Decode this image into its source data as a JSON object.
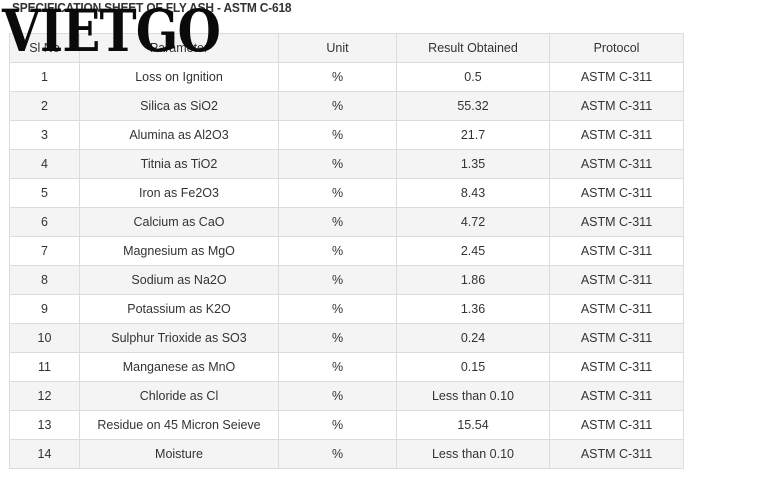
{
  "title": "SPECIFICATION SHEET OF FLY ASH - ASTM C-618",
  "logo_text": "VIETGO",
  "table": {
    "headers": [
      "Sl No",
      "Parameter",
      "Unit",
      "Result Obtained",
      "Protocol"
    ],
    "rows": [
      [
        "1",
        "Loss on Ignition",
        "%",
        "0.5",
        "ASTM C-311"
      ],
      [
        "2",
        "Silica as SiO2",
        "%",
        "55.32",
        "ASTM C-311"
      ],
      [
        "3",
        "Alumina as Al2O3",
        "%",
        "21.7",
        "ASTM C-311"
      ],
      [
        "4",
        "Titnia as TiO2",
        "%",
        "1.35",
        "ASTM C-311"
      ],
      [
        "5",
        "Iron as Fe2O3",
        "%",
        "8.43",
        "ASTM C-311"
      ],
      [
        "6",
        "Calcium as CaO",
        "%",
        "4.72",
        "ASTM C-311"
      ],
      [
        "7",
        "Magnesium as MgO",
        "%",
        "2.45",
        "ASTM C-311"
      ],
      [
        "8",
        "Sodium as Na2O",
        "%",
        "1.86",
        "ASTM C-311"
      ],
      [
        "9",
        "Potassium as K2O",
        "%",
        "1.36",
        "ASTM C-311"
      ],
      [
        "10",
        "Sulphur Trioxide as SO3",
        "%",
        "0.24",
        "ASTM C-311"
      ],
      [
        "11",
        "Manganese as MnO",
        "%",
        "0.15",
        "ASTM C-311"
      ],
      [
        "12",
        "Chloride as Cl",
        "%",
        "Less than 0.10",
        "ASTM C-311"
      ],
      [
        "13",
        "Residue on 45 Micron Seieve",
        "%",
        "15.54",
        "ASTM C-311"
      ],
      [
        "14",
        "Moisture",
        "%",
        "Less than 0.10",
        "ASTM C-311"
      ]
    ]
  }
}
